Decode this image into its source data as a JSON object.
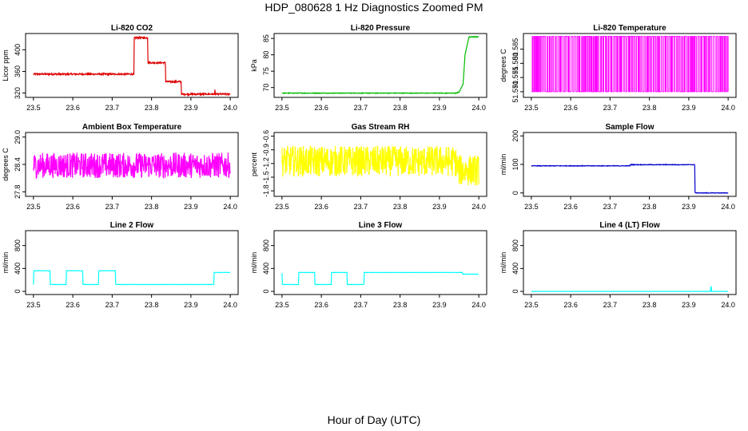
{
  "figure": {
    "title": "HDP_080628  1 Hz Diagnostics Zoomed PM",
    "xlabel": "Hour of Day (UTC)"
  },
  "chart_data": [
    {
      "type": "line",
      "title": "Li-820 CO2",
      "ylabel": "Licor ppm",
      "color": "#dd0000",
      "noise": 1.5,
      "xlim": [
        23.48,
        24.02
      ],
      "ylim": [
        312,
        430
      ],
      "xticks": [
        "23.5",
        "23.6",
        "23.7",
        "23.8",
        "23.9",
        "24.0"
      ],
      "yticks": [
        "320",
        "360",
        "400"
      ],
      "series": [
        {
          "x": [
            23.5,
            23.755,
            23.756,
            23.79,
            23.791,
            23.835,
            23.836,
            23.875,
            23.876,
            23.96,
            23.961,
            23.962,
            24.0
          ],
          "y": [
            355,
            355,
            422,
            422,
            376,
            376,
            341,
            341,
            318,
            318,
            325,
            318,
            318
          ]
        }
      ]
    },
    {
      "type": "line",
      "title": "Li-820 Pressure",
      "ylabel": "kPa",
      "color": "#00bb00",
      "noise": 0.1,
      "xlim": [
        23.48,
        24.02
      ],
      "ylim": [
        67,
        86.5
      ],
      "xticks": [
        "23.5",
        "23.6",
        "23.7",
        "23.8",
        "23.9",
        "24.0"
      ],
      "yticks": [
        "70",
        "75",
        "80",
        "85"
      ],
      "series": [
        {
          "x": [
            23.5,
            23.94,
            23.95,
            23.96,
            23.965,
            23.975,
            24.0
          ],
          "y": [
            68.3,
            68.3,
            68.6,
            71,
            80,
            85.5,
            85.5
          ]
        }
      ]
    },
    {
      "type": "line",
      "title": "Li-820 Temperature",
      "ylabel": "degrees C",
      "color": "#ff00ff",
      "xlim": [
        23.48,
        24.02
      ],
      "ylim": [
        51.568,
        51.5905
      ],
      "xticks": [
        "23.5",
        "23.6",
        "23.7",
        "23.8",
        "23.9",
        "24.0"
      ],
      "yticks": [
        "51.570",
        "51.575",
        "51.580",
        "51.585"
      ],
      "levels": [
        51.57,
        51.5895
      ]
    },
    {
      "type": "line",
      "title": "Ambient Box Temperature",
      "ylabel": "degrees C",
      "color": "#ff00ff",
      "noise": 0.28,
      "xlim": [
        23.48,
        24.02
      ],
      "ylim": [
        27.7,
        29.1
      ],
      "xticks": [
        "23.5",
        "23.6",
        "23.7",
        "23.8",
        "23.9",
        "24.0"
      ],
      "yticks": [
        "27.8",
        "28.4",
        "29.0"
      ],
      "series": [
        {
          "x": [
            23.5,
            24.0
          ],
          "y": [
            28.38,
            28.38
          ]
        }
      ]
    },
    {
      "type": "line",
      "title": "Gas Stream RH",
      "ylabel": "percent",
      "color": "#ffff00",
      "noise": 0.34,
      "xlim": [
        23.48,
        24.02
      ],
      "ylim": [
        -1.92,
        -0.52
      ],
      "xticks": [
        "23.5",
        "23.6",
        "23.7",
        "23.8",
        "23.9",
        "24.0"
      ],
      "yticks": [
        "-1.8",
        "-1.5",
        "-1.2",
        "-0.9",
        "-0.6"
      ],
      "series": [
        {
          "x": [
            23.5,
            23.94,
            23.95,
            24.0
          ],
          "y": [
            -1.15,
            -1.15,
            -1.35,
            -1.35
          ]
        }
      ]
    },
    {
      "type": "line",
      "title": "Sample Flow",
      "ylabel": "ml/min",
      "color": "#0000cc",
      "noise": 1,
      "xlim": [
        23.48,
        24.02
      ],
      "ylim": [
        -12,
        212
      ],
      "xticks": [
        "23.5",
        "23.6",
        "23.7",
        "23.8",
        "23.9",
        "24.0"
      ],
      "yticks": [
        "0",
        "100",
        "200"
      ],
      "series": [
        {
          "x": [
            23.5,
            23.75,
            23.751,
            23.915,
            23.916,
            24.0
          ],
          "y": [
            95,
            95,
            99,
            99,
            0,
            0
          ]
        }
      ]
    },
    {
      "type": "line",
      "title": "Line 2 Flow",
      "ylabel": "ml/min",
      "color": "#00ffff",
      "noise": 2,
      "xlim": [
        23.48,
        24.02
      ],
      "ylim": [
        -55,
        1060
      ],
      "xticks": [
        "23.5",
        "23.6",
        "23.7",
        "23.8",
        "23.9",
        "24.0"
      ],
      "yticks": [
        "0",
        "400",
        "800"
      ],
      "series": [
        {
          "x": [
            23.5,
            23.501,
            23.542,
            23.543,
            23.583,
            23.584,
            23.625,
            23.626,
            23.665,
            23.666,
            23.708,
            23.709,
            23.958,
            23.959,
            24.0
          ],
          "y": [
            120,
            360,
            360,
            120,
            120,
            360,
            360,
            120,
            120,
            360,
            360,
            120,
            120,
            330,
            330
          ]
        }
      ]
    },
    {
      "type": "line",
      "title": "Line 3 Flow",
      "ylabel": "ml/min",
      "color": "#00ffff",
      "noise": 2,
      "xlim": [
        23.48,
        24.02
      ],
      "ylim": [
        -55,
        1060
      ],
      "xticks": [
        "23.5",
        "23.6",
        "23.7",
        "23.8",
        "23.9",
        "24.0"
      ],
      "yticks": [
        "0",
        "400",
        "800"
      ],
      "series": [
        {
          "x": [
            23.5,
            23.501,
            23.502,
            23.542,
            23.543,
            23.583,
            23.584,
            23.625,
            23.626,
            23.665,
            23.666,
            23.708,
            23.709,
            23.958,
            23.959,
            24.0
          ],
          "y": [
            320,
            120,
            120,
            120,
            330,
            330,
            120,
            120,
            330,
            330,
            120,
            120,
            330,
            330,
            300,
            300
          ]
        }
      ]
    },
    {
      "type": "line",
      "title": "Line 4 (LT) Flow",
      "ylabel": "ml/min",
      "color": "#00ffff",
      "noise": 0,
      "xlim": [
        23.48,
        24.02
      ],
      "ylim": [
        -55,
        1060
      ],
      "xticks": [
        "23.5",
        "23.6",
        "23.7",
        "23.8",
        "23.9",
        "24.0"
      ],
      "yticks": [
        "0",
        "400",
        "800"
      ],
      "series": [
        {
          "x": [
            23.5,
            23.955,
            23.956,
            23.957,
            23.958,
            24.0
          ],
          "y": [
            0,
            0,
            80,
            80,
            0,
            0
          ]
        }
      ]
    }
  ]
}
